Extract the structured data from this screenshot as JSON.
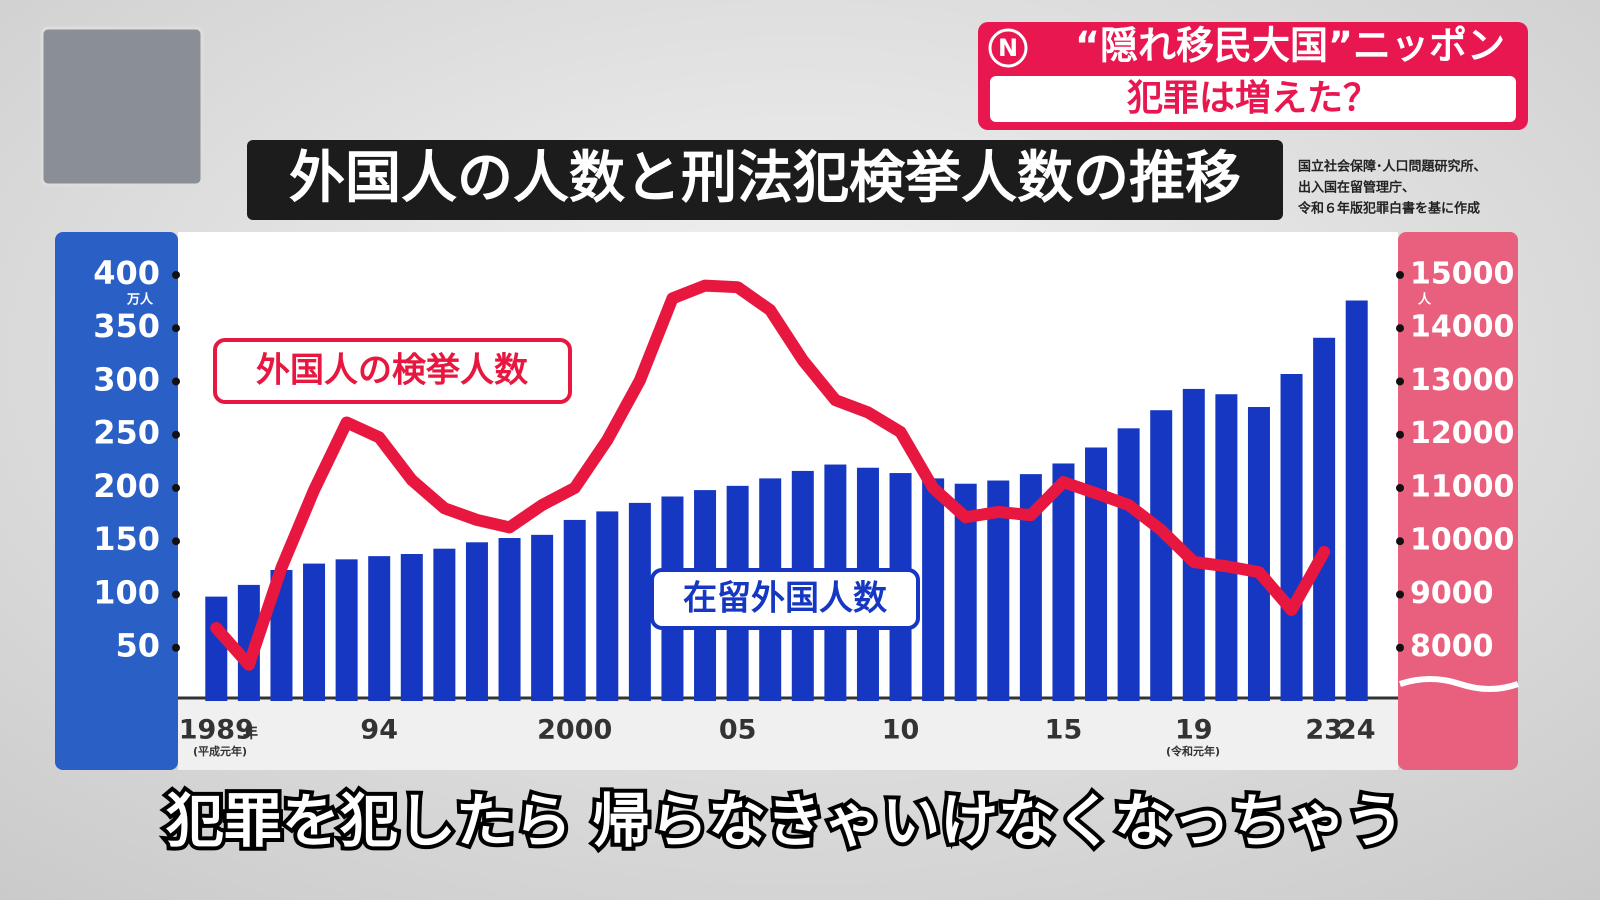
{
  "header": {
    "logo": "N",
    "topic": "“隠れ移民大国”ニッポン",
    "question": "犯罪は増えた？"
  },
  "title": "外国人の人数と刑法犯検挙人数の推移",
  "source": [
    "国立社会保障･人口問題研究所、",
    "出入国在留管理庁、",
    "令和６年版犯罪白書を基に作成"
  ],
  "subtitle": "犯罪を犯したら 帰らなきゃいけなくなっちゃう",
  "chart_data": {
    "type": "bar",
    "categories": [
      "1989",
      null,
      null,
      null,
      null,
      "94",
      null,
      null,
      null,
      null,
      null,
      "2000",
      null,
      null,
      null,
      null,
      "05",
      null,
      null,
      null,
      null,
      "10",
      null,
      null,
      null,
      null,
      "15",
      null,
      null,
      null,
      "19",
      null,
      null,
      null,
      "23",
      "24"
    ],
    "x_annotations": [
      "年",
      "(平成元年)",
      "(令和元年)"
    ],
    "y_unit": "万人",
    "y2_unit": "人",
    "ylim": [
      0,
      437.5
    ],
    "yticks": [
      50,
      100,
      150,
      200,
      250,
      300,
      350,
      400
    ],
    "y2lim": [
      7000,
      15750
    ],
    "y2ticks": [
      8000,
      9000,
      10000,
      11000,
      12000,
      13000,
      14000,
      15000
    ],
    "series": [
      {
        "name": "在留外国人数",
        "type": "bar",
        "color": "#1537c2",
        "values": [
          98,
          109,
          123,
          129,
          133,
          136,
          138,
          143,
          149,
          153,
          156,
          170,
          178,
          186,
          192,
          198,
          202,
          209,
          216,
          222,
          219,
          214,
          209,
          204,
          207,
          213,
          223,
          238,
          256,
          273,
          293,
          288,
          276,
          307,
          341,
          376
        ]
      },
      {
        "name": "外国人の検挙人数",
        "type": "line",
        "axis": "y2",
        "color": "#e8173f",
        "values": [
          8370,
          7680,
          9500,
          10960,
          12230,
          11950,
          11150,
          10620,
          10400,
          10260,
          10680,
          11000,
          11900,
          13020,
          14560,
          14800,
          14770,
          14340,
          13400,
          12650,
          12420,
          12050,
          11000,
          10450,
          10550,
          10490,
          11110,
          10900,
          10680,
          10210,
          9610,
          9530,
          9420,
          8710,
          9800,
          null
        ]
      }
    ]
  }
}
